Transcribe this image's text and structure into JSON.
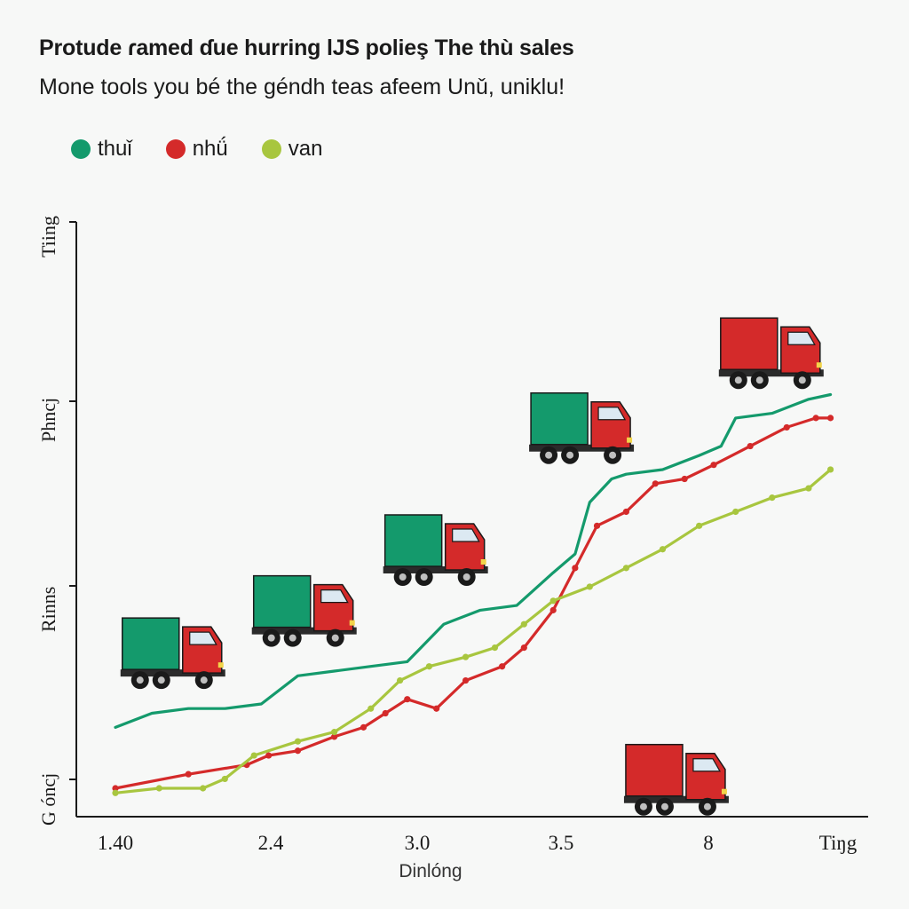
{
  "chart_data": {
    "type": "line",
    "title": "Protude ɾamed ɗue hurring lJS polieş The thù sales",
    "subtitle": "Mone tools you bé the géndh teas afeem Unǔ, uniklu!",
    "xlabel": "Dinlóng",
    "ylabel_ticks": [
      "Tiing",
      "Phncj",
      "Rinns",
      "G óncj"
    ],
    "x_ticks": [
      "1.40",
      "2.4",
      "3.0",
      "3.5",
      "8",
      "Tiŋg"
    ],
    "xlim": [
      0,
      10
    ],
    "ylim": [
      0,
      100
    ],
    "legend_position": "top-left",
    "series": [
      {
        "name": "thuǐ",
        "color": "#149a6c",
        "markers": false,
        "x": [
          0,
          0.5,
          1.0,
          1.5,
          2.0,
          2.5,
          3.0,
          3.5,
          4.0,
          4.5,
          5.0,
          5.5,
          6.0,
          6.3,
          6.5,
          6.8,
          7.0,
          7.5,
          8.0,
          8.3,
          8.5,
          9.0,
          9.5,
          9.8
        ],
        "values": [
          13,
          16,
          17,
          17,
          18,
          24,
          25,
          26,
          27,
          35,
          38,
          39,
          46,
          50,
          61,
          66,
          67,
          68,
          71,
          73,
          79,
          80,
          83,
          84
        ]
      },
      {
        "name": "nhǘ",
        "color": "#d42a2a",
        "markers": true,
        "x": [
          0,
          1.0,
          1.8,
          2.1,
          2.5,
          3.0,
          3.4,
          3.7,
          4.0,
          4.4,
          4.8,
          5.3,
          5.6,
          6.0,
          6.3,
          6.6,
          7.0,
          7.4,
          7.8,
          8.2,
          8.7,
          9.2,
          9.6,
          9.8
        ],
        "values": [
          0,
          3,
          5,
          7,
          8,
          11,
          13,
          16,
          19,
          17,
          23,
          26,
          30,
          38,
          47,
          56,
          59,
          65,
          66,
          69,
          73,
          77,
          79,
          79
        ]
      },
      {
        "name": "van",
        "color": "#a8c63f",
        "markers": true,
        "x": [
          0,
          0.6,
          1.2,
          1.5,
          1.9,
          2.5,
          3.0,
          3.5,
          3.9,
          4.3,
          4.8,
          5.2,
          5.6,
          6.0,
          6.5,
          7.0,
          7.5,
          8.0,
          8.5,
          9.0,
          9.5,
          9.8
        ],
        "values": [
          -1,
          0,
          0,
          2,
          7,
          10,
          12,
          17,
          23,
          26,
          28,
          30,
          35,
          40,
          43,
          47,
          51,
          56,
          59,
          62,
          64,
          68
        ]
      }
    ],
    "annotations": [
      {
        "type": "truck",
        "x": 0.8,
        "y": 28,
        "cargo": "#149a6c"
      },
      {
        "type": "truck",
        "x": 2.6,
        "y": 37,
        "cargo": "#149a6c"
      },
      {
        "type": "truck",
        "x": 4.4,
        "y": 50,
        "cargo": "#149a6c"
      },
      {
        "type": "truck",
        "x": 6.4,
        "y": 76,
        "cargo": "#149a6c"
      },
      {
        "type": "truck",
        "x": 9.0,
        "y": 92,
        "cargo": "#d42a2a"
      },
      {
        "type": "truck",
        "x": 7.7,
        "y": 1,
        "cargo": "#d42a2a"
      }
    ]
  }
}
